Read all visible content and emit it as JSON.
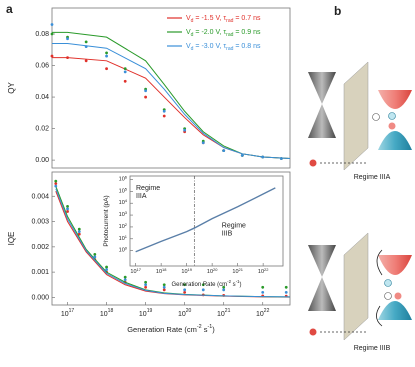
{
  "panels": {
    "a": "a",
    "b": "b"
  },
  "chart_data": [
    {
      "type": "scatter",
      "y_label": "QY",
      "xlog": true,
      "xlim": [
        4e+16,
        5e+22
      ],
      "ylim": [
        -0.005,
        0.0965
      ],
      "yticks": [
        {
          "value": 0,
          "label": "0.00"
        },
        {
          "value": 0.02,
          "label": "0.02"
        },
        {
          "value": 0.04,
          "label": "0.04"
        },
        {
          "value": 0.06,
          "label": "0.06"
        },
        {
          "value": 0.08,
          "label": "0.08"
        }
      ],
      "series": [
        {
          "name": "V_d = -1.5 V, τ_rad = 0.7 ns",
          "color": "#e0302a",
          "x": [
            4e+16,
            1e+17,
            3e+17,
            1e+18,
            3e+18,
            1e+19,
            3e+19,
            1e+20,
            3e+20,
            1e+21,
            3e+21,
            1e+22,
            3e+22
          ],
          "values": [
            0.066,
            0.065,
            0.063,
            0.058,
            0.05,
            0.04,
            0.028,
            0.018,
            0.011,
            0.006,
            0.003,
            0.002,
            0.001
          ],
          "fit_x": [
            4e+16,
            1e+17,
            1e+18,
            1e+19,
            3e+19,
            1e+20,
            3e+20,
            1e+21,
            3e+21,
            1e+22,
            5e+22
          ],
          "fit_values": [
            0.065,
            0.065,
            0.063,
            0.052,
            0.04,
            0.027,
            0.016,
            0.008,
            0.004,
            0.002,
            0.001
          ]
        },
        {
          "name": "V_d = -2.0 V, τ_rad = 0.9 ns",
          "color": "#2a9a2a",
          "x": [
            4e+16,
            1e+17,
            3e+17,
            1e+18,
            3e+18,
            1e+19,
            3e+19,
            1e+20,
            3e+20,
            1e+21,
            3e+21,
            1e+22,
            3e+22
          ],
          "values": [
            0.08,
            0.078,
            0.075,
            0.068,
            0.058,
            0.045,
            0.032,
            0.02,
            0.012,
            0.006,
            0.003,
            0.002,
            0.001
          ],
          "fit_x": [
            4e+16,
            1e+17,
            1e+18,
            1e+19,
            3e+19,
            1e+20,
            3e+20,
            1e+21,
            3e+21,
            1e+22,
            5e+22
          ],
          "fit_values": [
            0.081,
            0.081,
            0.078,
            0.063,
            0.048,
            0.031,
            0.018,
            0.009,
            0.004,
            0.002,
            0.001
          ]
        },
        {
          "name": "V_d = -3.0 V, τ_rad = 0.8 ns",
          "color": "#3a8fd8",
          "x": [
            4e+16,
            1e+17,
            3e+17,
            1e+18,
            3e+18,
            1e+19,
            3e+19,
            1e+20,
            3e+20,
            1e+21,
            3e+21,
            1e+22,
            3e+22
          ],
          "values": [
            0.086,
            0.077,
            0.072,
            0.066,
            0.056,
            0.044,
            0.031,
            0.019,
            0.011,
            0.006,
            0.003,
            0.002,
            0.001
          ],
          "fit_x": [
            4e+16,
            1e+17,
            1e+18,
            1e+19,
            3e+19,
            1e+20,
            3e+20,
            1e+21,
            3e+21,
            1e+22,
            5e+22
          ],
          "fit_values": [
            0.074,
            0.074,
            0.071,
            0.058,
            0.045,
            0.029,
            0.017,
            0.008,
            0.004,
            0.002,
            0.001
          ]
        }
      ]
    },
    {
      "type": "scatter",
      "y_label": "IQE",
      "x_label": "Generation Rate (cm^-2 s^-1)",
      "xlog": true,
      "xlim": [
        4e+16,
        5e+22
      ],
      "ylim": [
        -0.0003,
        0.00496
      ],
      "xticks": [
        {
          "value": 1e+17,
          "label": "10^17"
        },
        {
          "value": 1e+18,
          "label": "10^18"
        },
        {
          "value": 1e+19,
          "label": "10^19"
        },
        {
          "value": 1e+20,
          "label": "10^20"
        },
        {
          "value": 1e+21,
          "label": "10^21"
        },
        {
          "value": 1e+22,
          "label": "10^22"
        }
      ],
      "yticks": [
        {
          "value": 0,
          "label": "0.000"
        },
        {
          "value": 0.001,
          "label": "0.001"
        },
        {
          "value": 0.002,
          "label": "0.002"
        },
        {
          "value": 0.003,
          "label": "0.003"
        },
        {
          "value": 0.004,
          "label": "0.004"
        }
      ],
      "series": [
        {
          "color": "#e0302a",
          "x": [
            5e+16,
            1e+17,
            2e+17,
            5e+17,
            1e+18,
            3e+18,
            1e+19,
            3e+19,
            1e+20,
            3e+20,
            1e+21,
            1e+22,
            4e+22
          ],
          "values": [
            0.0045,
            0.0034,
            0.0025,
            0.0015,
            0.001,
            0.0006,
            0.0004,
            0.0003,
            0.0002,
            0.0001,
            8e-05,
            6e-05,
            5e-05
          ],
          "fit_x": [
            5e+16,
            1e+17,
            3e+17,
            1e+18,
            3e+18,
            1e+19,
            3e+19,
            1e+20,
            1e+21,
            1e+22,
            5e+22
          ],
          "fit_values": [
            0.0042,
            0.003,
            0.0018,
            0.0009,
            0.0005,
            0.00025,
            0.00015,
            0.0001,
            5e-05,
            2e-05,
            1e-05
          ]
        },
        {
          "color": "#2a9a2a",
          "x": [
            5e+16,
            1e+17,
            2e+17,
            5e+17,
            1e+18,
            3e+18,
            1e+19,
            3e+19,
            1e+20,
            3e+20,
            1e+21,
            1e+22,
            4e+22
          ],
          "values": [
            0.0046,
            0.0036,
            0.0027,
            0.0017,
            0.0012,
            0.0008,
            0.0006,
            0.0005,
            0.0005,
            0.0005,
            0.0004,
            0.0004,
            0.0004
          ],
          "fit_x": [
            5e+16,
            1e+17,
            3e+17,
            1e+18,
            3e+18,
            1e+19,
            3e+19,
            1e+20,
            1e+21,
            1e+22,
            5e+22
          ],
          "fit_values": [
            0.0044,
            0.0032,
            0.0019,
            0.001,
            0.0006,
            0.0003,
            0.00018,
            0.00012,
            6e-05,
            3e-05,
            2e-05
          ]
        },
        {
          "color": "#3a8fd8",
          "x": [
            5e+16,
            1e+17,
            2e+17,
            5e+17,
            1e+18,
            3e+18,
            1e+19,
            3e+19,
            1e+20,
            3e+20,
            1e+21,
            1e+22,
            4e+22
          ],
          "values": [
            0.0044,
            0.0035,
            0.0026,
            0.0016,
            0.0011,
            0.0007,
            0.0005,
            0.0004,
            0.0003,
            0.0003,
            0.0003,
            0.0002,
            0.0002
          ],
          "fit_x": [
            5e+16,
            1e+17,
            3e+17,
            1e+18,
            3e+18,
            1e+19,
            3e+19,
            1e+20,
            1e+21,
            1e+22,
            5e+22
          ],
          "fit_values": [
            0.0043,
            0.0031,
            0.00185,
            0.00095,
            0.00055,
            0.00028,
            0.00016,
            0.00011,
            6e-05,
            3e-05,
            2e-05
          ]
        }
      ]
    },
    {
      "type": "line",
      "y_label": "Photocurrent (pA)",
      "x_label": "Generation Rate (cm^-2 s^-1)",
      "xlog": true,
      "ylog": true,
      "xlim": [
        6e+16,
        6e+22
      ],
      "ylim": [
        0.05,
        2000000.0
      ],
      "xticks": [
        {
          "value": 1e+17,
          "label": "10^17"
        },
        {
          "value": 1e+18,
          "label": "10^18"
        },
        {
          "value": 1e+19,
          "label": "10^19"
        },
        {
          "value": 1e+20,
          "label": "10^20"
        },
        {
          "value": 1e+21,
          "label": "10^21"
        },
        {
          "value": 1e+22,
          "label": "10^22"
        }
      ],
      "yticks": [
        {
          "value": 1,
          "label": "10^0"
        },
        {
          "value": 10,
          "label": "10^1"
        },
        {
          "value": 100,
          "label": "10^2"
        },
        {
          "value": 1000,
          "label": "10^3"
        },
        {
          "value": 10000,
          "label": "10^4"
        },
        {
          "value": 100000,
          "label": "10^5"
        },
        {
          "value": 1000000,
          "label": "10^6"
        }
      ],
      "threshold_x": 2e+19,
      "annotations": [
        "Regime\nIIIA",
        "Regime\nIIIB"
      ],
      "series": [
        {
          "color": "#5a7fa8",
          "x": [
            1e+17,
            1e+18,
            1e+19,
            2e+19,
            1e+20,
            1e+21,
            1e+22,
            3e+22
          ],
          "values": [
            0.8,
            6,
            40,
            80,
            500,
            5000,
            60000,
            200000
          ]
        }
      ]
    }
  ],
  "diagram": {
    "labels": [
      "Regime IIIA",
      "Regime IIIB"
    ]
  }
}
